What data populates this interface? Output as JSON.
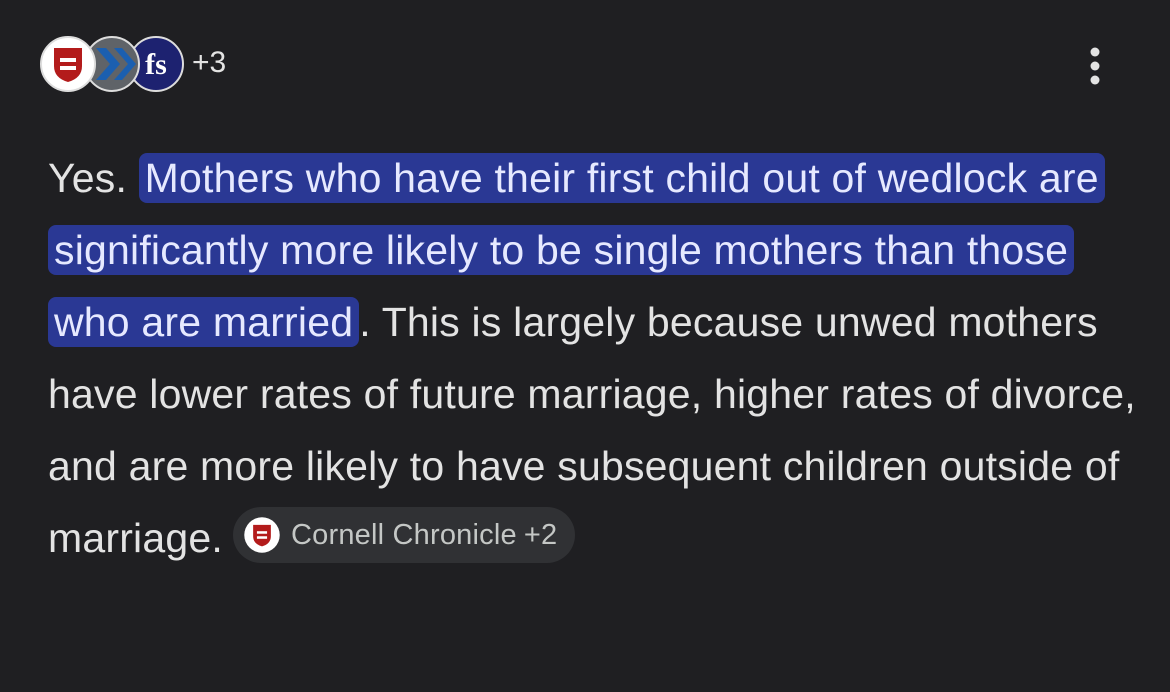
{
  "header": {
    "source_count": "+3"
  },
  "answer": {
    "lead": "Yes.",
    "highlight": "Mothers who have their first child out of wedlock are significantly more likely to be single mothers than those who are married",
    "highlight_end": ".",
    "body": "This is largely because unwed mothers have lower rates of future marriage, higher rates of divorce, and are more likely to have subsequent children outside of marriage.",
    "source_chip": {
      "name": "Cornell Chronicle",
      "more": "+2"
    }
  }
}
